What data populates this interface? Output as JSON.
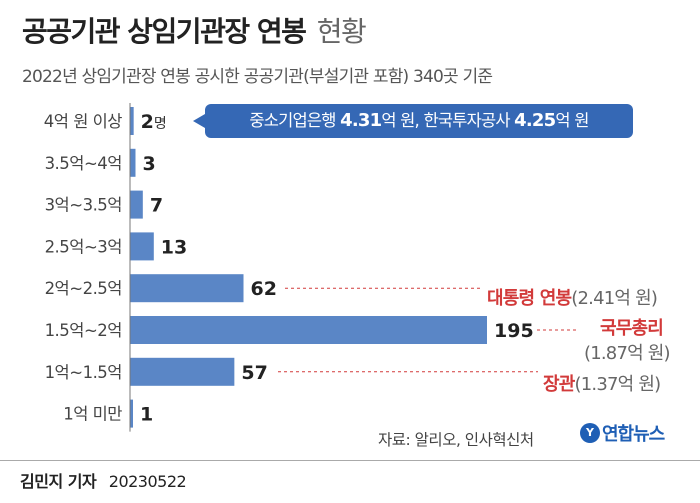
{
  "header": {
    "title": "공공기관 상임기관장 연봉",
    "title_suffix": "현황",
    "subtitle": "2022년 상임기관장 연봉 공시한 공공기관(부설기관 포함) 340곳 기준"
  },
  "chart_data": {
    "type": "bar",
    "orientation": "horizontal",
    "categories": [
      "4억 원 이상",
      "3.5억~4억",
      "3억~3.5억",
      "2.5억~3억",
      "2억~2.5억",
      "1.5억~2억",
      "1억~1.5억",
      "1억 미만"
    ],
    "values": [
      2,
      3,
      7,
      13,
      62,
      195,
      57,
      1
    ],
    "value_labels": [
      "2",
      "3",
      "7",
      "13",
      "62",
      "195",
      "57",
      "1"
    ],
    "first_value_unit": "명",
    "bar_color": "#5a86c6",
    "xlim": [
      0,
      195
    ],
    "grid": false,
    "legend": "none"
  },
  "callout": {
    "part1": "중소기업은행 ",
    "value1": "4.31",
    "part2": "억 원, 한국투자공사 ",
    "value2": "4.25",
    "part3": "억 원",
    "color": "#3568b5"
  },
  "annotations": {
    "president_label": "대통령 연봉",
    "president_value": "(2.41억 원)",
    "pm_label": "국무총리",
    "pm_value": "(1.87억 원)",
    "minister_label": "장관",
    "minister_value": "(1.37억 원)",
    "color": "#d23a3a"
  },
  "source": "자료: 알리오, 인사혁신처",
  "logo": {
    "mark": "Y",
    "text": "연합뉴스"
  },
  "footer": {
    "author": "김민지 기자",
    "date": "20230522"
  }
}
